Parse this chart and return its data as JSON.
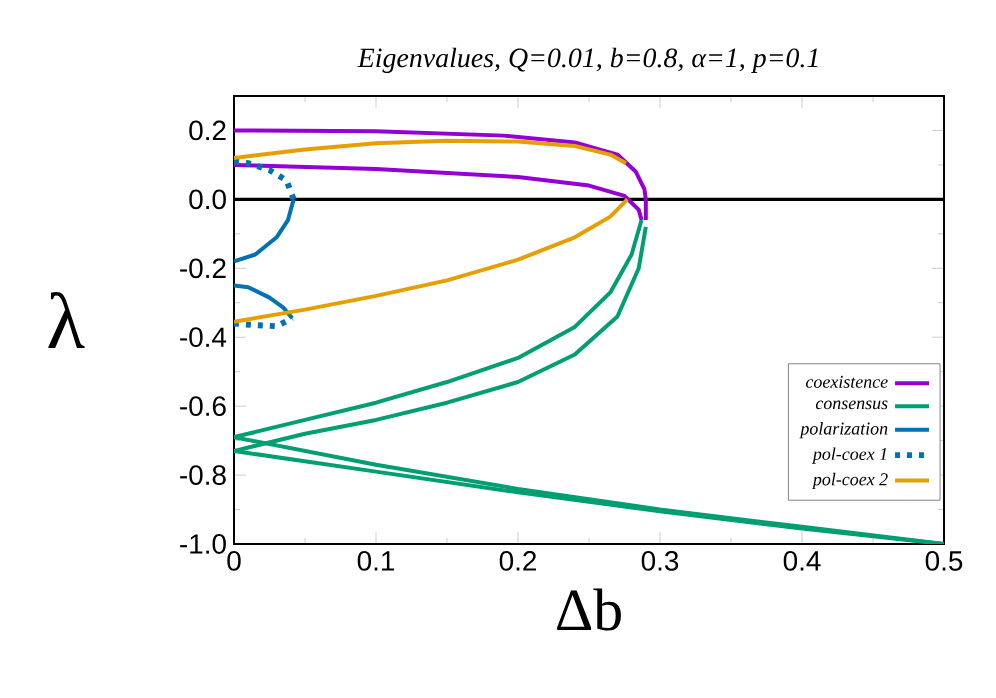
{
  "chart_data": {
    "type": "line",
    "title": "Eigenvalues, Q=0.01, b=0.8, α=1, p=0.1",
    "xlabel": "Δb",
    "ylabel": "λ",
    "xlim": [
      0,
      0.5
    ],
    "ylim": [
      -1.0,
      0.3
    ],
    "xticks": [
      {
        "value": 0,
        "label": "0"
      },
      0.1,
      0.2,
      0.3,
      0.4,
      0.5
    ],
    "yticks": [
      {
        "value": -1.0,
        "label": "-1.0"
      },
      -0.8,
      -0.6,
      -0.4,
      -0.2,
      {
        "value": 0,
        "label": "0.0"
      },
      0.2
    ],
    "grid": false,
    "legend": "right",
    "marker": "none",
    "ref_lines": [
      {
        "axis": "y",
        "value": 0,
        "color": "#000000"
      }
    ],
    "series": [
      {
        "name": "coexistence",
        "color": "#9400d3",
        "x": [
          0,
          0.1,
          0.19,
          0.24,
          0.27,
          0.283,
          0.289,
          0.29,
          0.29
        ],
        "values": [
          0.2,
          0.198,
          0.185,
          0.165,
          0.13,
          0.08,
          0.03,
          0,
          -0.06
        ]
      },
      {
        "color": "#9400d3",
        "x": [
          0,
          0.1,
          0.2,
          0.25,
          0.275,
          0.285,
          0.287
        ],
        "values": [
          0.1,
          0.088,
          0.065,
          0.04,
          0.01,
          -0.03,
          -0.06
        ]
      },
      {
        "name": "consensus",
        "color": "#009e73",
        "x": [
          0,
          0.05,
          0.1,
          0.15,
          0.2,
          0.24,
          0.265,
          0.28,
          0.287
        ],
        "values": [
          -0.69,
          -0.64,
          -0.59,
          -0.53,
          -0.46,
          -0.37,
          -0.27,
          -0.16,
          -0.06
        ]
      },
      {
        "color": "#009e73",
        "x": [
          0,
          0.05,
          0.1,
          0.15,
          0.2,
          0.24,
          0.27,
          0.285,
          0.29
        ],
        "values": [
          -0.73,
          -0.68,
          -0.64,
          -0.59,
          -0.53,
          -0.45,
          -0.34,
          -0.2,
          -0.08
        ]
      },
      {
        "color": "#009e73",
        "x": [
          0,
          0.1,
          0.2,
          0.3,
          0.4,
          0.5
        ],
        "values": [
          -0.69,
          -0.77,
          -0.84,
          -0.9,
          -0.95,
          -1.0
        ]
      },
      {
        "color": "#009e73",
        "x": [
          0,
          0.1,
          0.2,
          0.3,
          0.4,
          0.5
        ],
        "values": [
          -0.73,
          -0.79,
          -0.85,
          -0.905,
          -0.955,
          -1.0
        ]
      },
      {
        "name": "polarization",
        "color": "#0072b2",
        "x": [
          0,
          0.015,
          0.03,
          0.038,
          0.042
        ],
        "values": [
          -0.18,
          -0.16,
          -0.11,
          -0.06,
          0
        ]
      },
      {
        "color": "#0072b2",
        "x": [
          0,
          0.01,
          0.025,
          0.035,
          0.041
        ],
        "values": [
          -0.25,
          -0.255,
          -0.285,
          -0.315,
          -0.345
        ]
      },
      {
        "name": "pol-coex 1",
        "color": "#0072b2",
        "line_style": "dotted",
        "x": [
          0,
          0.01,
          0.025,
          0.037,
          0.042
        ],
        "values": [
          0.11,
          0.105,
          0.085,
          0.055,
          0
        ]
      },
      {
        "color": "#0072b2",
        "line_style": "dotted",
        "x": [
          0,
          0.015,
          0.03,
          0.041
        ],
        "values": [
          -0.36,
          -0.365,
          -0.368,
          -0.345
        ]
      },
      {
        "name": "pol-coex 2",
        "color": "#e69f00",
        "x": [
          0,
          0.05,
          0.1,
          0.15,
          0.2,
          0.24,
          0.265,
          0.277
        ],
        "values": [
          -0.355,
          -0.32,
          -0.28,
          -0.235,
          -0.175,
          -0.11,
          -0.05,
          0
        ]
      },
      {
        "color": "#e69f00",
        "x": [
          0,
          0.05,
          0.1,
          0.15,
          0.2,
          0.24,
          0.265,
          0.276
        ],
        "values": [
          0.12,
          0.145,
          0.163,
          0.17,
          0.168,
          0.155,
          0.13,
          0.105
        ]
      }
    ]
  }
}
